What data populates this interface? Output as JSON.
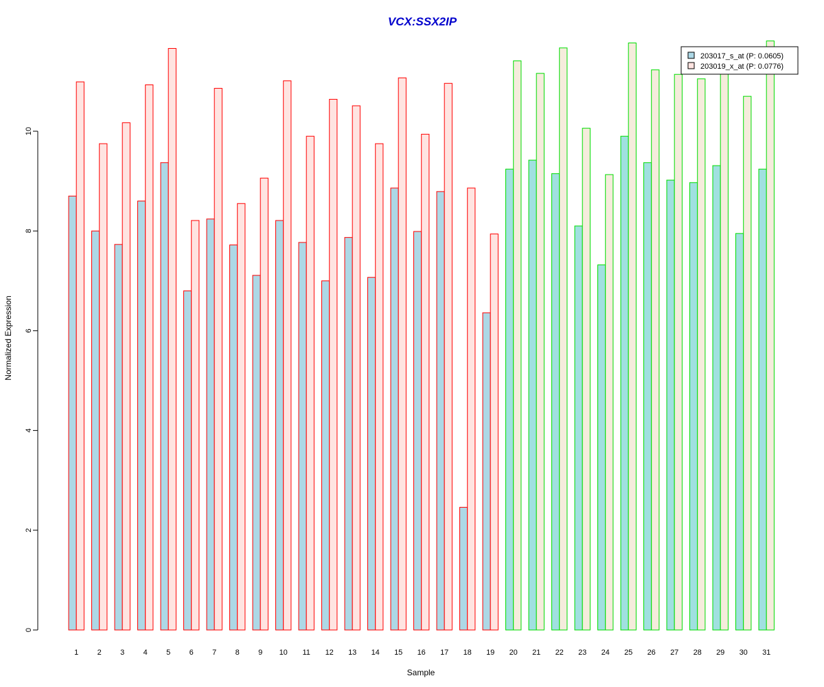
{
  "chart_data": {
    "type": "bar",
    "title": "VCX:SSX2IP",
    "xlabel": "Sample",
    "ylabel": "Normalized Expression",
    "ylim": [
      0,
      12
    ],
    "yticks": [
      0,
      2,
      4,
      6,
      8,
      10
    ],
    "grid": false,
    "legend_position": "top-right",
    "categories": [
      "1",
      "2",
      "3",
      "4",
      "5",
      "6",
      "7",
      "8",
      "9",
      "10",
      "11",
      "12",
      "13",
      "14",
      "15",
      "16",
      "17",
      "18",
      "19",
      "20",
      "21",
      "22",
      "23",
      "24",
      "25",
      "26",
      "27",
      "28",
      "29",
      "30",
      "31"
    ],
    "group_a_count": 19,
    "series": [
      {
        "name": "203017_s_at (P: 0.0605)",
        "values": [
          8.7,
          8.0,
          7.73,
          8.6,
          9.37,
          6.8,
          8.24,
          7.72,
          7.11,
          8.21,
          7.77,
          7.0,
          7.87,
          7.07,
          8.86,
          7.99,
          8.79,
          2.46,
          6.36,
          9.24,
          9.42,
          9.15,
          8.1,
          7.32,
          9.9,
          9.37,
          9.02,
          8.97,
          9.31,
          7.95,
          9.24
        ]
      },
      {
        "name": "203019_x_at (P: 0.0776)",
        "values": [
          10.99,
          9.75,
          10.17,
          10.93,
          11.66,
          8.21,
          10.86,
          8.55,
          9.06,
          11.01,
          9.9,
          10.64,
          10.51,
          9.75,
          11.07,
          9.94,
          10.96,
          8.86,
          7.94,
          11.41,
          11.16,
          11.67,
          10.06,
          9.13,
          11.77,
          11.23,
          11.14,
          11.05,
          11.55,
          10.7,
          11.81
        ]
      }
    ]
  },
  "colors": {
    "title": "#0000cc",
    "group_a_border": "#ff0000",
    "group_b_border": "#00dd00",
    "series_a_fill_group_a": "#add8e6",
    "series_b_fill_group_a": "#ffe4e1",
    "series_a_fill_group_b": "#a0e0e0",
    "series_b_fill_group_b": "#f5ecdc",
    "legend_a_fill": "#add8e6",
    "legend_b_fill": "#ffe4e1"
  }
}
